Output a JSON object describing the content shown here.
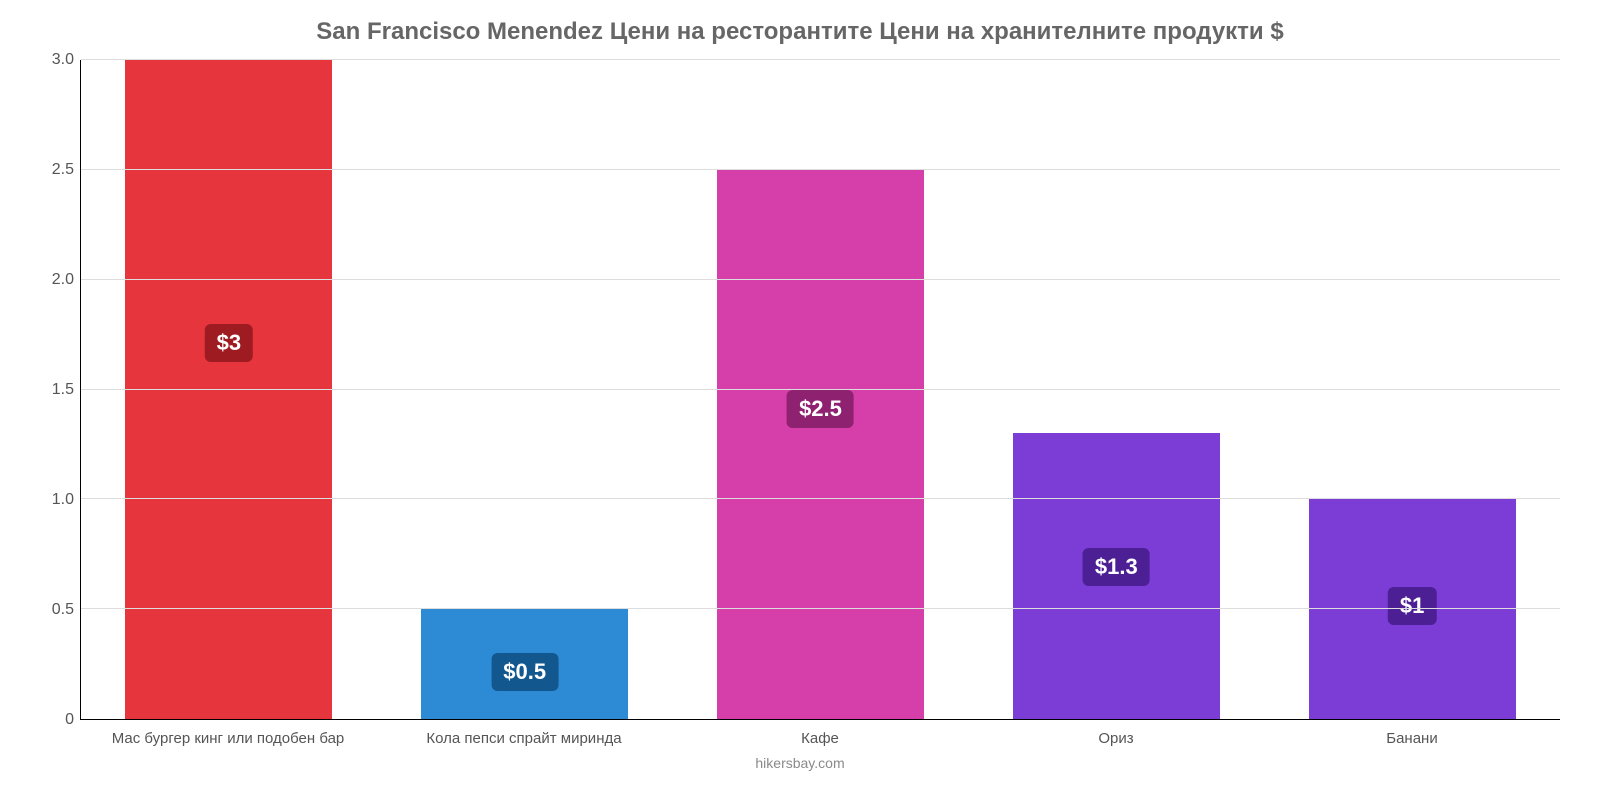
{
  "chart": {
    "type": "bar",
    "title": "San Francisco Menendez Цени на ресторантите Цени на хранителните продукти $",
    "title_fontsize": 24,
    "title_color": "#666666",
    "footer": "hikersbay.com",
    "footer_color": "#8a8a8a",
    "background_color": "#ffffff",
    "grid_color": "#dddddd",
    "axis_color": "#000000",
    "label_color": "#555555",
    "label_fontsize": 15,
    "tick_fontsize": 16,
    "ylim": [
      0,
      3.0
    ],
    "ytick_step": 0.5,
    "yticks": [
      {
        "pos": 0.0,
        "label": "0"
      },
      {
        "pos": 0.5,
        "label": "0.5"
      },
      {
        "pos": 1.0,
        "label": "1.0"
      },
      {
        "pos": 1.5,
        "label": "1.5"
      },
      {
        "pos": 2.0,
        "label": "2.0"
      },
      {
        "pos": 2.5,
        "label": "2.5"
      },
      {
        "pos": 3.0,
        "label": "3.0"
      }
    ],
    "bar_width_pct": 70,
    "badges": {
      "fontsize": 22,
      "text_color": "#ffffff",
      "border_radius": 6
    },
    "categories": [
      "Мас бургер кинг или подобен бар",
      "Кола пепси спрайт миринда",
      "Кафе",
      "Ориз",
      "Банани"
    ],
    "series": [
      {
        "value": 3.0,
        "label": "$3",
        "color": "#e7353e",
        "badge_color": "#9e1b22"
      },
      {
        "value": 0.5,
        "label": "$0.5",
        "color": "#2d8bd6",
        "badge_color": "#13578f"
      },
      {
        "value": 2.5,
        "label": "$2.5",
        "color": "#d63ea9",
        "badge_color": "#8e2170"
      },
      {
        "value": 1.3,
        "label": "$1.3",
        "color": "#7c3cd6",
        "badge_color": "#4d1f94"
      },
      {
        "value": 1.0,
        "label": "$1",
        "color": "#7c3cd6",
        "badge_color": "#4d1f94"
      }
    ]
  }
}
